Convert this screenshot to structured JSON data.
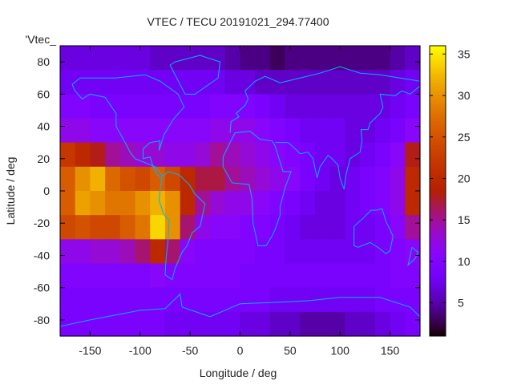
{
  "chart_data": {
    "type": "heatmap",
    "title": "VTEC / TECU 20191021_294.77400",
    "xlabel": "Longitude / deg",
    "ylabel": "Latitude / deg",
    "key_label": "'Vtec_",
    "xlim": [
      -180,
      180
    ],
    "ylim": [
      -90,
      90
    ],
    "xticks": [
      -150,
      -100,
      -50,
      0,
      50,
      100,
      150
    ],
    "yticks": [
      -80,
      -60,
      -40,
      -20,
      0,
      20,
      40,
      60,
      80
    ],
    "colorbar": {
      "range": [
        1,
        36
      ],
      "ticks": [
        5,
        10,
        15,
        20,
        25,
        30,
        35
      ],
      "palette": "black-blue-purple-red-yellow"
    },
    "coastline_color": "#00b4ff",
    "lon_centers": [
      -172.5,
      -157.5,
      -142.5,
      -127.5,
      -112.5,
      -97.5,
      -82.5,
      -67.5,
      -52.5,
      -37.5,
      -22.5,
      -7.5,
      7.5,
      22.5,
      37.5,
      52.5,
      67.5,
      82.5,
      97.5,
      112.5,
      127.5,
      142.5,
      157.5,
      172.5
    ],
    "lat_centers": [
      82.5,
      67.5,
      52.5,
      37.5,
      22.5,
      7.5,
      -7.5,
      -22.5,
      -37.5,
      -52.5,
      -67.5,
      -82.5
    ],
    "values": [
      [
        7,
        7,
        7,
        7,
        7,
        7,
        6,
        6,
        6,
        6,
        6,
        5,
        4,
        4,
        3,
        4,
        4,
        4,
        4,
        4,
        4,
        4,
        5,
        6
      ],
      [
        8,
        8,
        8,
        8,
        8,
        8,
        8,
        8,
        8,
        8,
        8,
        7,
        7,
        6,
        6,
        6,
        6,
        6,
        6,
        6,
        6,
        6,
        7,
        8
      ],
      [
        10,
        10,
        9,
        9,
        9,
        9,
        9,
        9,
        9,
        9,
        10,
        10,
        10,
        9,
        8,
        7,
        7,
        7,
        7,
        7,
        7,
        7,
        8,
        9
      ],
      [
        12,
        12,
        11,
        11,
        11,
        11,
        11,
        11,
        11,
        11,
        12,
        12,
        12,
        11,
        10,
        9,
        8,
        8,
        8,
        7,
        7,
        8,
        9,
        11
      ],
      [
        22,
        20,
        18,
        15,
        14,
        13,
        13,
        12,
        12,
        13,
        15,
        14,
        13,
        12,
        11,
        10,
        9,
        8,
        8,
        7,
        8,
        9,
        11,
        18
      ],
      [
        26,
        30,
        32,
        27,
        25,
        24,
        26,
        24,
        20,
        17,
        17,
        15,
        14,
        13,
        12,
        11,
        9,
        8,
        7,
        8,
        9,
        10,
        12,
        20
      ],
      [
        26,
        31,
        30,
        28,
        28,
        30,
        32,
        30,
        20,
        15,
        13,
        12,
        12,
        11,
        10,
        9,
        8,
        7,
        7,
        8,
        9,
        10,
        12,
        20
      ],
      [
        24,
        25,
        24,
        24,
        26,
        28,
        34,
        30,
        16,
        12,
        11,
        11,
        10,
        10,
        9,
        8,
        7,
        7,
        7,
        8,
        8,
        9,
        11,
        15
      ],
      [
        12,
        12,
        13,
        13,
        14,
        16,
        20,
        16,
        11,
        10,
        10,
        10,
        10,
        9,
        9,
        8,
        8,
        8,
        8,
        8,
        8,
        9,
        10,
        11
      ],
      [
        10,
        10,
        10,
        10,
        10,
        10,
        11,
        10,
        10,
        10,
        10,
        10,
        9,
        9,
        9,
        9,
        9,
        9,
        9,
        9,
        9,
        9,
        10,
        10
      ],
      [
        9,
        9,
        9,
        9,
        9,
        9,
        9,
        9,
        9,
        9,
        9,
        9,
        9,
        9,
        8,
        8,
        8,
        8,
        8,
        8,
        8,
        9,
        9,
        9
      ],
      [
        9,
        9,
        9,
        9,
        9,
        9,
        9,
        8,
        8,
        8,
        8,
        8,
        7,
        7,
        6,
        6,
        5,
        5,
        5,
        6,
        6,
        7,
        8,
        9
      ]
    ]
  }
}
